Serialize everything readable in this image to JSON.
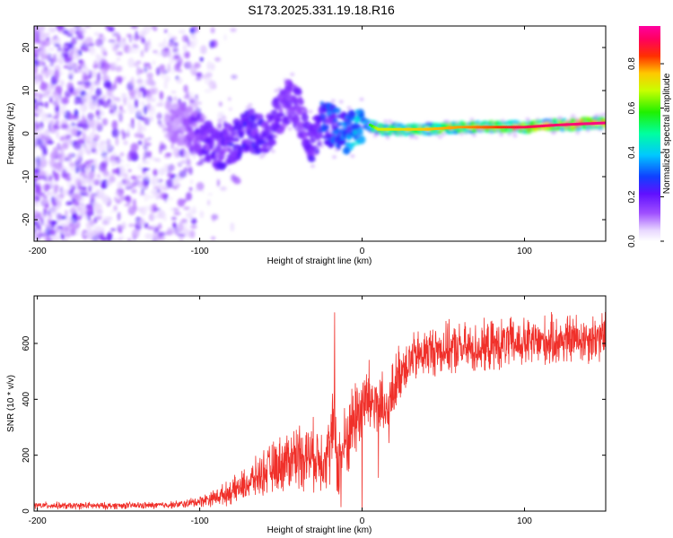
{
  "figure_title": "S173.2025.331.19.18.R16",
  "chart_data": [
    {
      "type": "heatmap",
      "title": "S173.2025.331.19.18.R16",
      "xlabel": "Height of straight line (km)",
      "ylabel": "Frequency (Hz)",
      "xlim": [
        -202,
        150
      ],
      "ylim": [
        -25,
        25
      ],
      "x_ticks": [
        -200,
        -100,
        0,
        100
      ],
      "x_tick_labels": [
        "-200",
        "-100",
        "0",
        "100"
      ],
      "y_ticks": [
        -20,
        -10,
        0,
        10,
        20
      ],
      "y_tick_labels": [
        "-20",
        "-10",
        "0",
        "10",
        "20"
      ],
      "colorbar": {
        "label": "Normalized spectral amplitude",
        "range": [
          0,
          0.97
        ],
        "ticks": [
          0,
          0.2,
          0.4,
          0.6,
          0.8
        ],
        "tick_labels": [
          "0.0",
          "0.2",
          "0.4",
          "0.6",
          "0.8"
        ],
        "colormap": "rainbow (white-violet-blue-cyan-green-yellow-red-magenta)"
      },
      "ridge": {
        "description": "Dominant frequency track vs height; broad noise at heights below about -120 km",
        "x": [
          -120,
          -110,
          -100,
          -90,
          -80,
          -70,
          -60,
          -50,
          -45,
          -40,
          -35,
          -30,
          -25,
          -20,
          -15,
          -10,
          -5,
          0,
          10,
          20,
          40,
          60,
          80,
          100,
          120,
          150
        ],
        "y": [
          3,
          2,
          0,
          -4,
          -2,
          1,
          -1,
          5,
          8,
          6,
          0,
          -2,
          3,
          2,
          1,
          0,
          1,
          3,
          1,
          1,
          1,
          1.5,
          1.5,
          1.5,
          2,
          2.5
        ],
        "amplitude": [
          0.1,
          0.12,
          0.2,
          0.2,
          0.22,
          0.24,
          0.22,
          0.2,
          0.18,
          0.18,
          0.2,
          0.22,
          0.28,
          0.3,
          0.3,
          0.35,
          0.4,
          0.42,
          0.7,
          0.72,
          0.76,
          0.78,
          0.82,
          0.9,
          0.92,
          0.95
        ]
      }
    },
    {
      "type": "line",
      "xlabel": "Height of straight line (km)",
      "ylabel": "SNR (10 * v/v)",
      "xlim": [
        -202,
        150
      ],
      "ylim": [
        0,
        770
      ],
      "x_ticks": [
        -200,
        -100,
        0,
        100
      ],
      "x_tick_labels": [
        "-200",
        "-100",
        "0",
        "100"
      ],
      "y_ticks": [
        0,
        200,
        400,
        600
      ],
      "y_tick_labels": [
        "0",
        "200",
        "400",
        "600"
      ],
      "color": "#f0302a",
      "series": [
        {
          "name": "SNR",
          "x": [
            -202,
            -190,
            -180,
            -170,
            -160,
            -150,
            -140,
            -130,
            -120,
            -110,
            -100,
            -90,
            -80,
            -70,
            -60,
            -50,
            -40,
            -35,
            -30,
            -25,
            -20,
            -17,
            -15,
            -10,
            -5,
            0,
            5,
            10,
            15,
            20,
            25,
            30,
            40,
            50,
            60,
            70,
            80,
            90,
            100,
            110,
            120,
            130,
            140,
            150
          ],
          "values": [
            20,
            20,
            18,
            20,
            18,
            20,
            20,
            20,
            22,
            25,
            35,
            50,
            70,
            100,
            140,
            170,
            200,
            200,
            200,
            190,
            220,
            320,
            160,
            250,
            330,
            380,
            400,
            380,
            330,
            450,
            520,
            540,
            570,
            580,
            580,
            580,
            590,
            600,
            600,
            605,
            610,
            615,
            620,
            625
          ],
          "noise_amplitude": [
            12,
            12,
            12,
            12,
            12,
            12,
            12,
            12,
            12,
            14,
            20,
            30,
            45,
            60,
            80,
            100,
            120,
            120,
            120,
            120,
            130,
            150,
            130,
            140,
            150,
            150,
            140,
            130,
            120,
            110,
            100,
            90,
            90,
            90,
            90,
            90,
            90,
            90,
            90,
            90,
            90,
            90,
            90,
            90
          ],
          "spikes": [
            {
              "x": -17,
              "value": 710
            },
            {
              "x": -13,
              "value": 15
            },
            {
              "x": 0,
              "value": 0
            },
            {
              "x": 10,
              "value": 120
            }
          ]
        }
      ]
    }
  ]
}
